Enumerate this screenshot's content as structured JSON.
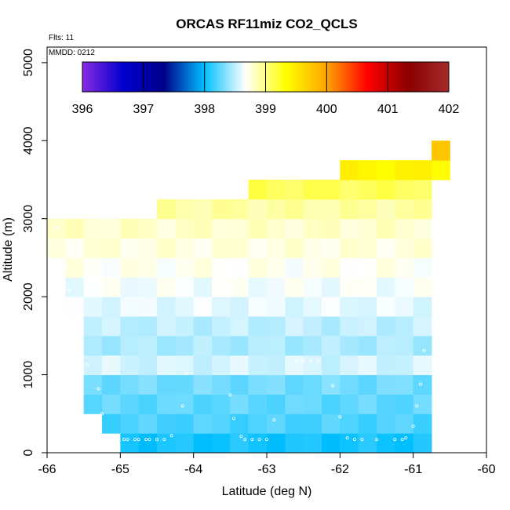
{
  "chart_data": {
    "type": "heatmap",
    "title": "ORCAS RF11miz CO2_QCLS",
    "annotations": [
      "Flts: 11",
      "MMDD: 0212"
    ],
    "xlabel": "Latitude (deg N)",
    "ylabel": "Altitude (m)",
    "xlim": [
      -66,
      -60
    ],
    "ylim": [
      0,
      5200
    ],
    "x_ticks": [
      "-66",
      "-65",
      "-64",
      "-63",
      "-62",
      "-61",
      "-60"
    ],
    "y_ticks": [
      "0",
      "1000",
      "2000",
      "3000",
      "4000",
      "5000"
    ],
    "colorbar": {
      "min": 396,
      "max": 402,
      "ticks": [
        "396",
        "397",
        "398",
        "399",
        "400",
        "401",
        "402"
      ],
      "colors": [
        "#8a2be2",
        "#0000cd",
        "#00008b",
        "#00bfff",
        "#ffffff",
        "#ffff00",
        "#ffa500",
        "#ff0000",
        "#8b0000",
        "#a52a2a"
      ]
    },
    "cell_size": {
      "lat": 0.25,
      "alt": 250
    },
    "cells": [
      {
        "lat0": -65.0,
        "lat1": -60.75,
        "alt0": 0,
        "alt1": 250,
        "value": 398.05
      },
      {
        "lat0": -65.25,
        "lat1": -60.75,
        "alt0": 250,
        "alt1": 500,
        "value": 398.2
      },
      {
        "lat0": -65.5,
        "lat1": -60.75,
        "alt0": 500,
        "alt1": 750,
        "value": 398.25
      },
      {
        "lat0": -65.5,
        "lat1": -60.75,
        "alt0": 750,
        "alt1": 1000,
        "value": 398.3
      },
      {
        "lat0": -65.5,
        "lat1": -60.75,
        "alt0": 1000,
        "alt1": 1250,
        "value": 398.55
      },
      {
        "lat0": -65.5,
        "lat1": -60.75,
        "alt0": 1250,
        "alt1": 1500,
        "value": 398.45
      },
      {
        "lat0": -65.5,
        "lat1": -60.75,
        "alt0": 1500,
        "alt1": 1750,
        "value": 398.5
      },
      {
        "lat0": -65.75,
        "lat1": -60.75,
        "alt0": 1750,
        "alt1": 2000,
        "value": 398.6
      },
      {
        "lat0": -65.75,
        "lat1": -60.75,
        "alt0": 2000,
        "alt1": 2250,
        "value": 398.65
      },
      {
        "lat0": -65.75,
        "lat1": -60.75,
        "alt0": 2250,
        "alt1": 2500,
        "value": 398.7
      },
      {
        "lat0": -66.0,
        "lat1": -60.75,
        "alt0": 2500,
        "alt1": 2750,
        "value": 398.75
      },
      {
        "lat0": -66.0,
        "lat1": -60.75,
        "alt0": 2750,
        "alt1": 3000,
        "value": 398.8
      },
      {
        "lat0": -64.5,
        "lat1": -60.75,
        "alt0": 3000,
        "alt1": 3250,
        "value": 398.9
      },
      {
        "lat0": -63.25,
        "lat1": -60.75,
        "alt0": 3250,
        "alt1": 3500,
        "value": 399.1
      },
      {
        "lat0": -62.0,
        "lat1": -60.5,
        "alt0": 3500,
        "alt1": 3750,
        "value": 399.4
      },
      {
        "lat0": -60.75,
        "lat1": -60.5,
        "alt0": 3750,
        "alt1": 4000,
        "value": 399.7
      }
    ],
    "flight_points": [
      {
        "lat": -65.9,
        "alt": 2880
      },
      {
        "lat": -65.85,
        "alt": 2880
      },
      {
        "lat": -65.8,
        "alt": 2680
      },
      {
        "lat": -65.75,
        "alt": 2380
      },
      {
        "lat": -65.7,
        "alt": 2080
      },
      {
        "lat": -65.6,
        "alt": 1760
      },
      {
        "lat": -65.55,
        "alt": 1450
      },
      {
        "lat": -65.45,
        "alt": 1130
      },
      {
        "lat": -65.3,
        "alt": 820
      },
      {
        "lat": -65.25,
        "alt": 500
      },
      {
        "lat": -64.95,
        "alt": 170
      },
      {
        "lat": -64.9,
        "alt": 170
      },
      {
        "lat": -64.8,
        "alt": 170
      },
      {
        "lat": -64.75,
        "alt": 170
      },
      {
        "lat": -64.65,
        "alt": 170
      },
      {
        "lat": -64.6,
        "alt": 170
      },
      {
        "lat": -64.5,
        "alt": 170
      },
      {
        "lat": -64.4,
        "alt": 170
      },
      {
        "lat": -64.3,
        "alt": 220
      },
      {
        "lat": -64.15,
        "alt": 600
      },
      {
        "lat": -64.1,
        "alt": 1020
      },
      {
        "lat": -63.5,
        "alt": 740
      },
      {
        "lat": -63.45,
        "alt": 440
      },
      {
        "lat": -63.35,
        "alt": 210
      },
      {
        "lat": -63.3,
        "alt": 170
      },
      {
        "lat": -63.2,
        "alt": 170
      },
      {
        "lat": -63.1,
        "alt": 170
      },
      {
        "lat": -63.0,
        "alt": 170
      },
      {
        "lat": -62.9,
        "alt": 420
      },
      {
        "lat": -62.6,
        "alt": 1180
      },
      {
        "lat": -62.5,
        "alt": 1180
      },
      {
        "lat": -62.4,
        "alt": 1180
      },
      {
        "lat": -62.3,
        "alt": 1180
      },
      {
        "lat": -62.1,
        "alt": 860
      },
      {
        "lat": -62.0,
        "alt": 460
      },
      {
        "lat": -61.9,
        "alt": 190
      },
      {
        "lat": -61.8,
        "alt": 170
      },
      {
        "lat": -61.7,
        "alt": 170
      },
      {
        "lat": -61.5,
        "alt": 170
      },
      {
        "lat": -61.25,
        "alt": 170
      },
      {
        "lat": -61.15,
        "alt": 170
      },
      {
        "lat": -61.1,
        "alt": 190
      },
      {
        "lat": -61.0,
        "alt": 340
      },
      {
        "lat": -60.95,
        "alt": 600
      },
      {
        "lat": -60.9,
        "alt": 880
      },
      {
        "lat": -60.85,
        "alt": 1310
      }
    ],
    "grid": false,
    "legend_position": "colorbar top-inside"
  }
}
